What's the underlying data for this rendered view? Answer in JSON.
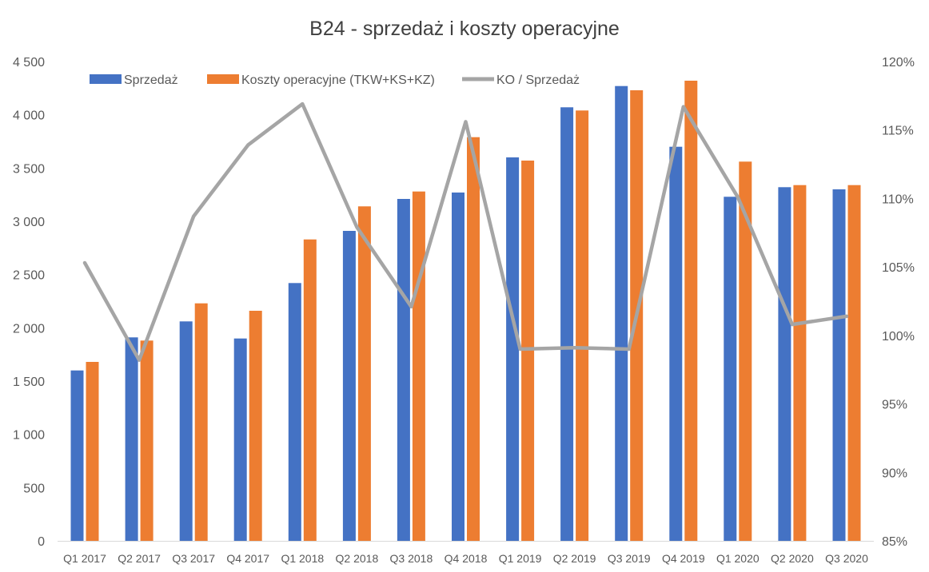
{
  "chart_data": {
    "type": "bar",
    "title": "B24 - sprzedaż i koszty operacyjne",
    "categories": [
      "Q1 2017",
      "Q2 2017",
      "Q3 2017",
      "Q4 2017",
      "Q1 2018",
      "Q2 2018",
      "Q3 2018",
      "Q4 2018",
      "Q1 2019",
      "Q2 2019",
      "Q3 2019",
      "Q4 2019",
      "Q1 2020",
      "Q2 2020",
      "Q3 2020"
    ],
    "series": [
      {
        "name": "Sprzedaż",
        "type": "bar",
        "axis": "left",
        "color": "#4472C4",
        "values": [
          1600,
          1910,
          2060,
          1900,
          2420,
          2910,
          3210,
          3270,
          3600,
          4070,
          4270,
          3700,
          3230,
          3320,
          3300
        ]
      },
      {
        "name": "Koszty operacyjne (TKW+KS+KZ)",
        "type": "bar",
        "axis": "left",
        "color": "#ED7D31",
        "values": [
          1680,
          1880,
          2230,
          2160,
          2830,
          3140,
          3280,
          3790,
          3570,
          4040,
          4230,
          4320,
          3560,
          3340,
          3340
        ]
      },
      {
        "name": "KO / Sprzedaż",
        "type": "line",
        "axis": "right",
        "color": "#A5A5A5",
        "values": [
          105.3,
          98.2,
          108.7,
          113.9,
          116.9,
          107.9,
          102.1,
          115.6,
          99.0,
          99.1,
          99.0,
          116.7,
          110.1,
          100.8,
          101.4
        ]
      }
    ],
    "y_left": {
      "min": 0,
      "max": 4500,
      "step": 500,
      "tick_labels": [
        "0",
        "500",
        "1 000",
        "1 500",
        "2 000",
        "2 500",
        "3 000",
        "3 500",
        "4 000",
        "4 500"
      ]
    },
    "y_right": {
      "min": 85,
      "max": 120,
      "step": 5,
      "tick_labels": [
        "85%",
        "90%",
        "95%",
        "100%",
        "105%",
        "110%",
        "115%",
        "120%"
      ]
    },
    "legend_position": "top",
    "grid": false
  }
}
